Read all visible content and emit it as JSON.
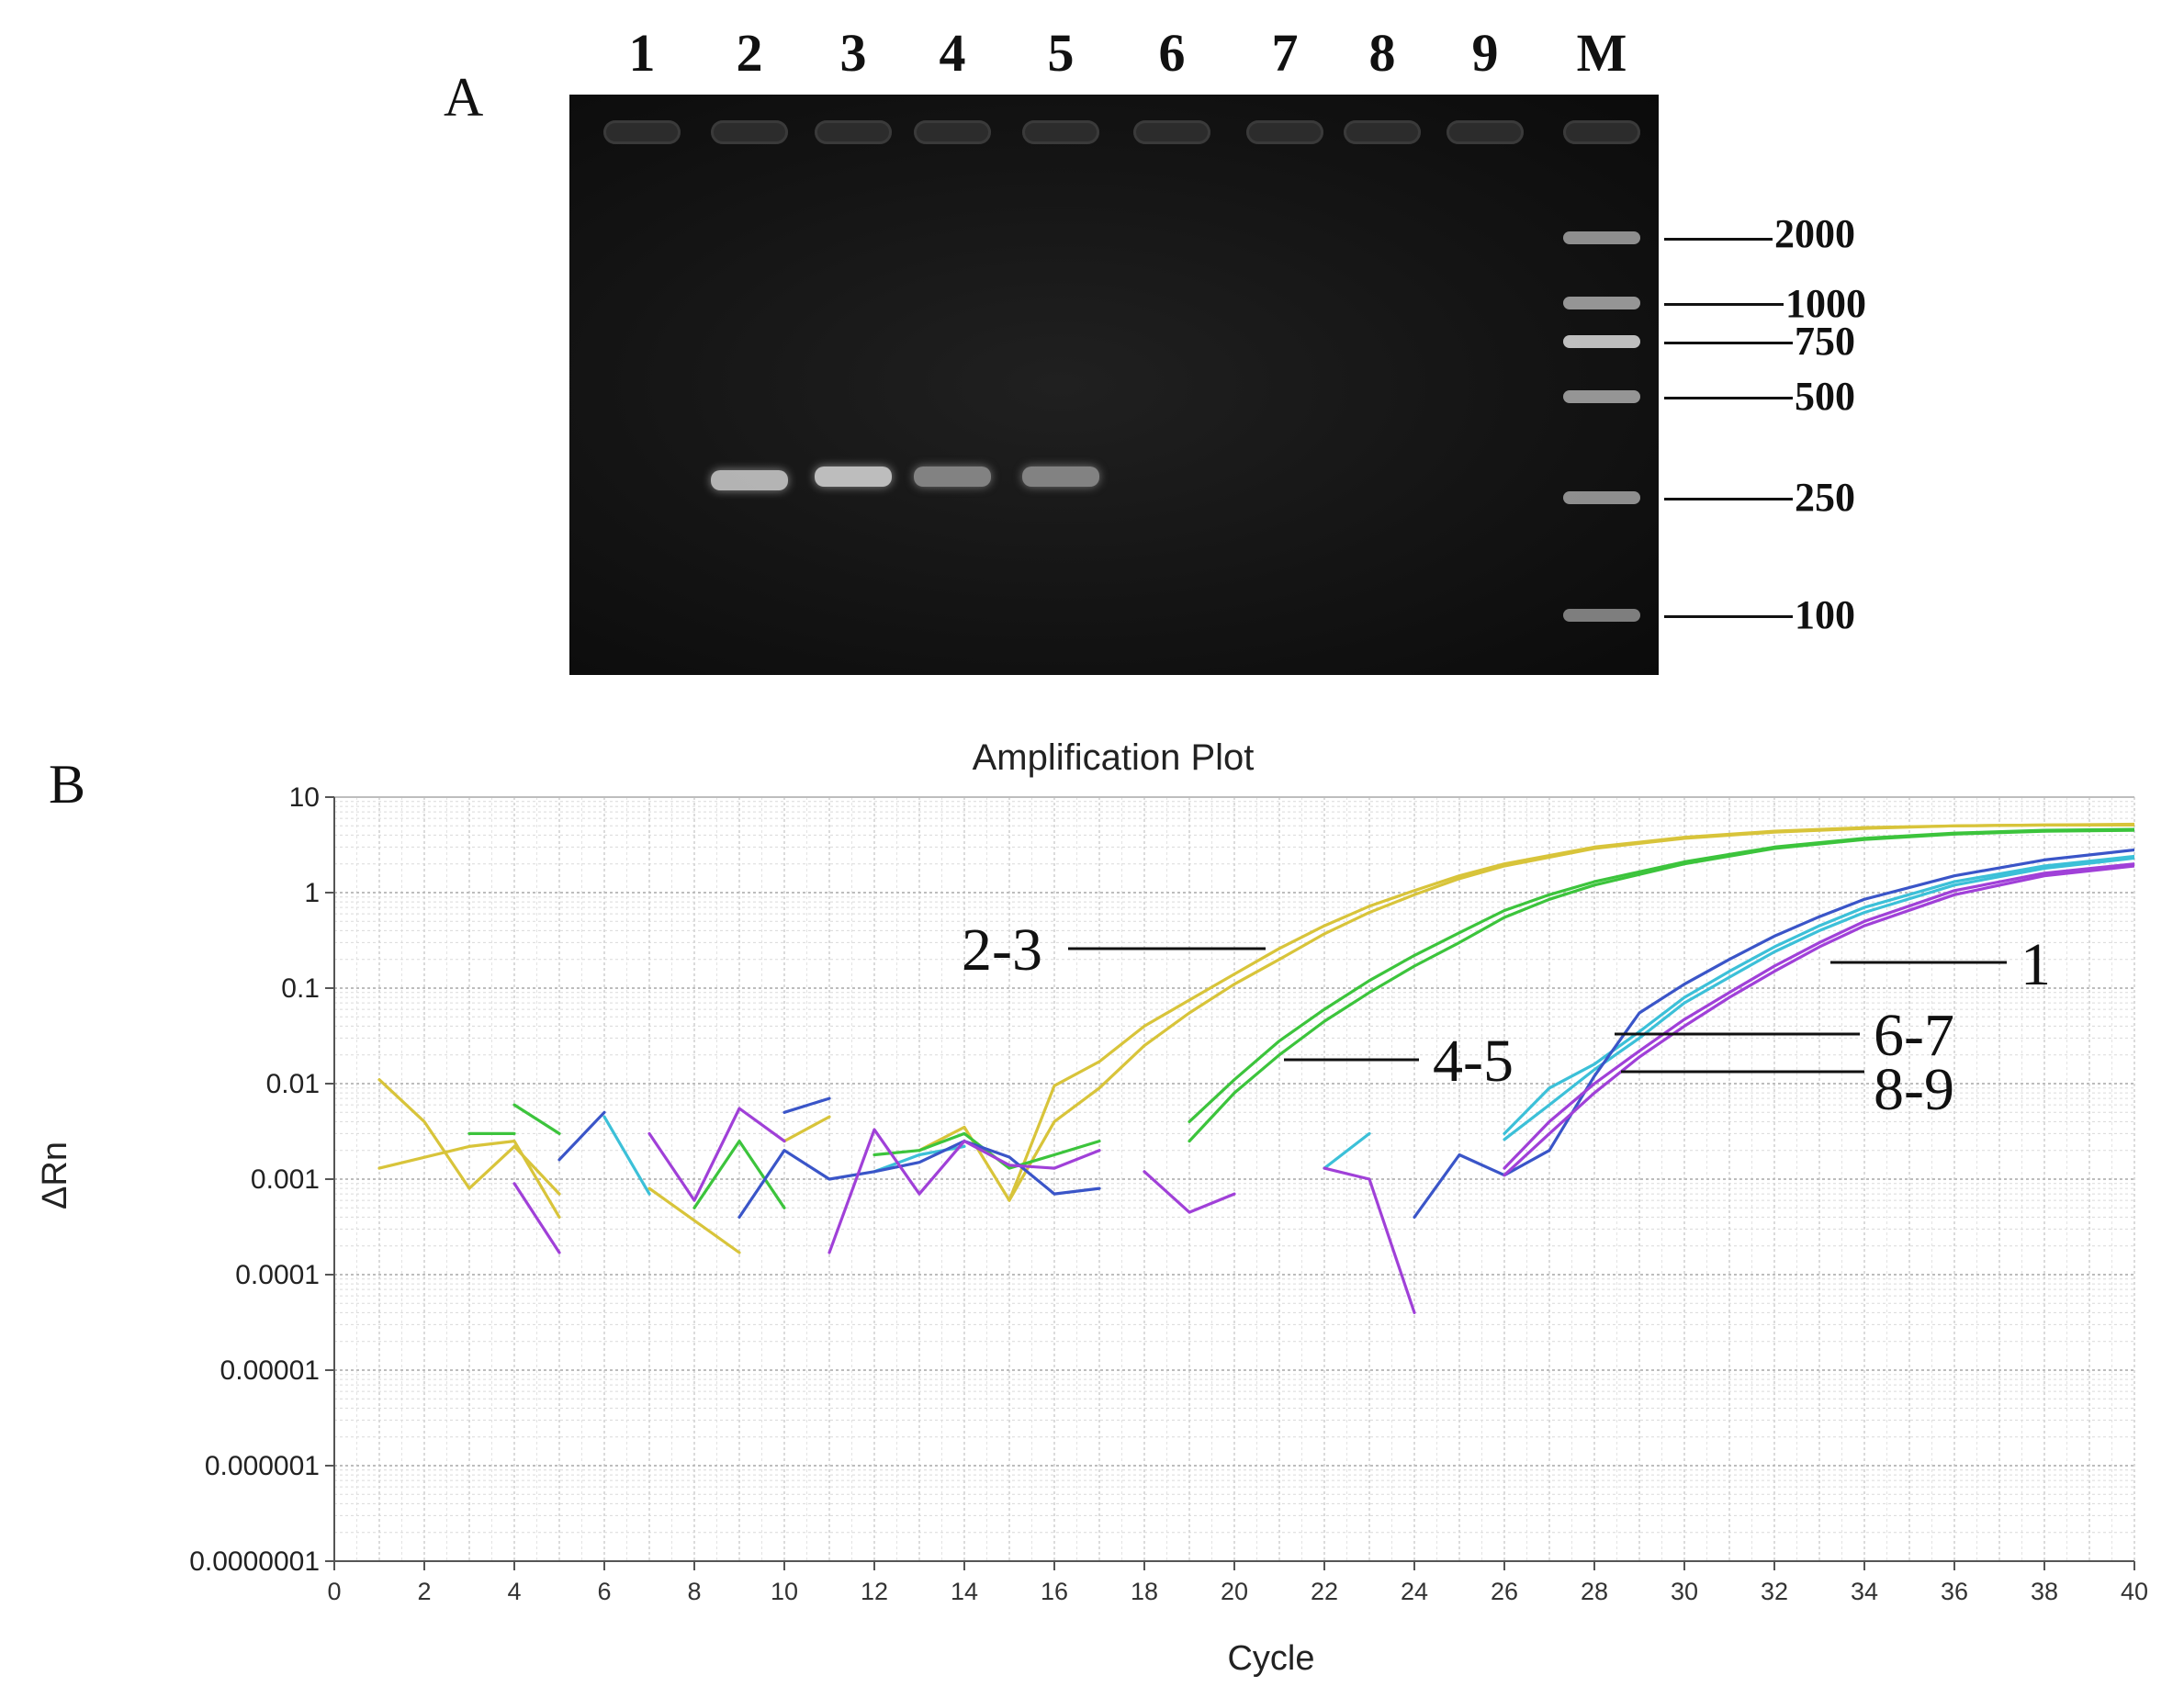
{
  "panel_a": {
    "letter": "A",
    "lane_labels": [
      "1",
      "2",
      "3",
      "4",
      "5",
      "6",
      "7",
      "8",
      "9",
      "M"
    ],
    "marker_sizes": [
      "2000",
      "1000",
      "750",
      "500",
      "250",
      "100"
    ],
    "band_intensity": [
      0,
      0.85,
      0.9,
      0.55,
      0.55,
      0,
      0,
      0,
      0
    ]
  },
  "panel_b": {
    "letter": "B",
    "annotations": [
      "2-3",
      "4-5",
      "1",
      "6-7",
      "8-9"
    ]
  },
  "colors": {
    "yellow": "#d8c43a",
    "green": "#3cc43c",
    "blue": "#3a55c8",
    "cyan": "#3cc0d8",
    "purple": "#a040d8"
  },
  "chart_data": {
    "type": "line",
    "title": "Amplification Plot",
    "xlabel": "Cycle",
    "ylabel": "ΔRn",
    "y_scale": "log",
    "xlim": [
      0,
      40
    ],
    "ylim": [
      1e-07,
      10
    ],
    "x_ticks": [
      "0",
      "2",
      "4",
      "6",
      "8",
      "10",
      "12",
      "14",
      "16",
      "18",
      "20",
      "22",
      "24",
      "26",
      "28",
      "30",
      "32",
      "34",
      "36",
      "38",
      "40"
    ],
    "y_ticks": [
      "10",
      "1",
      "0.1",
      "0.01",
      "0.001",
      "0.0001",
      "0.00001",
      "0.000001",
      "0.0000001"
    ],
    "series": [
      {
        "name": "2",
        "color": "yellow",
        "points": [
          [
            1,
            0.0013
          ],
          [
            3,
            0.0022
          ],
          [
            4,
            0.0025
          ],
          [
            5,
            0.0004
          ],
          [
            null,
            null
          ],
          [
            15,
            0.0006
          ],
          [
            16,
            0.004
          ],
          [
            17,
            0.009
          ],
          [
            18,
            0.025
          ],
          [
            19,
            0.055
          ],
          [
            20,
            0.11
          ],
          [
            21,
            0.2
          ],
          [
            22,
            0.37
          ],
          [
            23,
            0.62
          ],
          [
            24,
            0.95
          ],
          [
            25,
            1.4
          ],
          [
            26,
            1.9
          ],
          [
            28,
            2.9
          ],
          [
            30,
            3.7
          ],
          [
            32,
            4.3
          ],
          [
            34,
            4.7
          ],
          [
            36,
            5.0
          ],
          [
            38,
            5.1
          ],
          [
            40,
            5.2
          ]
        ]
      },
      {
        "name": "3",
        "color": "yellow",
        "points": [
          [
            1,
            0.011
          ],
          [
            2,
            0.004
          ],
          [
            3,
            0.0008
          ],
          [
            4,
            0.0022
          ],
          [
            5,
            0.0007
          ],
          [
            null,
            null
          ],
          [
            6,
            0.0045
          ],
          [
            null,
            null
          ],
          [
            7,
            0.0008
          ],
          [
            9,
            0.00017
          ],
          [
            null,
            null
          ],
          [
            10,
            0.0025
          ],
          [
            11,
            0.0045
          ],
          [
            null,
            null
          ],
          [
            13,
            0.002
          ],
          [
            14,
            0.0035
          ],
          [
            15,
            0.0006
          ],
          [
            16,
            0.0095
          ],
          [
            17,
            0.017
          ],
          [
            18,
            0.04
          ],
          [
            19,
            0.075
          ],
          [
            20,
            0.14
          ],
          [
            21,
            0.26
          ],
          [
            22,
            0.45
          ],
          [
            23,
            0.72
          ],
          [
            24,
            1.05
          ],
          [
            25,
            1.5
          ],
          [
            26,
            2.0
          ],
          [
            28,
            3.0
          ],
          [
            30,
            3.8
          ],
          [
            32,
            4.4
          ],
          [
            34,
            4.8
          ],
          [
            36,
            5.0
          ],
          [
            38,
            5.1
          ],
          [
            40,
            5.1
          ]
        ]
      },
      {
        "name": "4",
        "color": "green",
        "points": [
          [
            3,
            0.003
          ],
          [
            4,
            0.003
          ],
          [
            null,
            null
          ],
          [
            4,
            0.006
          ],
          [
            5,
            0.003
          ],
          [
            null,
            null
          ],
          [
            8,
            0.0005
          ],
          [
            9,
            0.0025
          ],
          [
            10,
            0.0005
          ],
          [
            null,
            null
          ],
          [
            12,
            0.0018
          ],
          [
            13,
            0.002
          ],
          [
            14,
            0.003
          ],
          [
            15,
            0.0013
          ],
          [
            16,
            0.0018
          ],
          [
            17,
            0.0025
          ],
          [
            null,
            null
          ],
          [
            19,
            0.0025
          ],
          [
            20,
            0.008
          ],
          [
            21,
            0.02
          ],
          [
            22,
            0.045
          ],
          [
            23,
            0.09
          ],
          [
            24,
            0.17
          ],
          [
            25,
            0.3
          ],
          [
            26,
            0.55
          ],
          [
            27,
            0.85
          ],
          [
            28,
            1.2
          ],
          [
            30,
            2.0
          ],
          [
            32,
            2.9
          ],
          [
            34,
            3.6
          ],
          [
            36,
            4.1
          ],
          [
            38,
            4.4
          ],
          [
            40,
            4.5
          ]
        ]
      },
      {
        "name": "5",
        "color": "green",
        "points": [
          [
            19,
            0.004
          ],
          [
            20,
            0.011
          ],
          [
            21,
            0.028
          ],
          [
            22,
            0.06
          ],
          [
            23,
            0.12
          ],
          [
            24,
            0.22
          ],
          [
            25,
            0.38
          ],
          [
            26,
            0.65
          ],
          [
            27,
            0.95
          ],
          [
            28,
            1.3
          ],
          [
            30,
            2.1
          ],
          [
            32,
            3.0
          ],
          [
            34,
            3.7
          ],
          [
            36,
            4.2
          ],
          [
            38,
            4.5
          ],
          [
            40,
            4.6
          ]
        ]
      },
      {
        "name": "6",
        "color": "cyan",
        "points": [
          [
            6,
            0.0045
          ],
          [
            7,
            0.0007
          ],
          [
            null,
            null
          ],
          [
            12,
            0.0012
          ],
          [
            13,
            0.0018
          ],
          [
            14,
            0.0022
          ],
          [
            null,
            null
          ],
          [
            22,
            0.0013
          ],
          [
            23,
            0.003
          ],
          [
            null,
            null
          ],
          [
            26,
            0.003
          ],
          [
            27,
            0.009
          ],
          [
            28,
            0.016
          ],
          [
            29,
            0.035
          ],
          [
            30,
            0.08
          ],
          [
            31,
            0.15
          ],
          [
            32,
            0.27
          ],
          [
            33,
            0.45
          ],
          [
            34,
            0.7
          ],
          [
            36,
            1.3
          ],
          [
            38,
            1.9
          ],
          [
            40,
            2.4
          ]
        ]
      },
      {
        "name": "7",
        "color": "cyan",
        "points": [
          [
            26,
            0.0026
          ],
          [
            27,
            0.006
          ],
          [
            28,
            0.014
          ],
          [
            29,
            0.03
          ],
          [
            30,
            0.07
          ],
          [
            31,
            0.13
          ],
          [
            32,
            0.24
          ],
          [
            33,
            0.4
          ],
          [
            34,
            0.62
          ],
          [
            36,
            1.2
          ],
          [
            38,
            1.8
          ],
          [
            40,
            2.3
          ]
        ]
      },
      {
        "name": "1",
        "color": "blue",
        "points": [
          [
            5,
            0.0016
          ],
          [
            6,
            0.005
          ],
          [
            null,
            null
          ],
          [
            9,
            0.0004
          ],
          [
            10,
            0.002
          ],
          [
            11,
            0.001
          ],
          [
            12,
            0.0012
          ],
          [
            13,
            0.0015
          ],
          [
            14,
            0.0025
          ],
          [
            15,
            0.0017
          ],
          [
            16,
            0.0007
          ],
          [
            17,
            0.0008
          ],
          [
            null,
            null
          ],
          [
            10,
            0.005
          ],
          [
            11,
            0.007
          ],
          [
            null,
            null
          ],
          [
            24,
            0.0004
          ],
          [
            25,
            0.0018
          ],
          [
            26,
            0.0011
          ],
          [
            27,
            0.002
          ],
          [
            28,
            0.012
          ],
          [
            29,
            0.055
          ],
          [
            30,
            0.11
          ],
          [
            31,
            0.2
          ],
          [
            32,
            0.35
          ],
          [
            33,
            0.56
          ],
          [
            34,
            0.85
          ],
          [
            36,
            1.5
          ],
          [
            38,
            2.2
          ],
          [
            40,
            2.8
          ]
        ]
      },
      {
        "name": "8",
        "color": "purple",
        "points": [
          [
            4,
            0.0009
          ],
          [
            5,
            0.00017
          ],
          [
            null,
            null
          ],
          [
            7,
            0.003
          ],
          [
            8,
            0.0006
          ],
          [
            9,
            0.0055
          ],
          [
            10,
            0.0025
          ],
          [
            null,
            null
          ],
          [
            11,
            0.00017
          ],
          [
            12,
            0.0033
          ],
          [
            13,
            0.0007
          ],
          [
            14,
            0.0025
          ],
          [
            15,
            0.0014
          ],
          [
            16,
            0.0013
          ],
          [
            17,
            0.002
          ],
          [
            null,
            null
          ],
          [
            18,
            0.0012
          ],
          [
            19,
            0.00045
          ],
          [
            20,
            0.0007
          ],
          [
            null,
            null
          ],
          [
            22,
            0.0013
          ],
          [
            23,
            0.001
          ],
          [
            24,
            4e-05
          ],
          [
            null,
            null
          ],
          [
            26,
            0.0011
          ],
          [
            27,
            0.003
          ],
          [
            28,
            0.008
          ],
          [
            29,
            0.019
          ],
          [
            30,
            0.04
          ],
          [
            31,
            0.08
          ],
          [
            32,
            0.15
          ],
          [
            33,
            0.27
          ],
          [
            34,
            0.45
          ],
          [
            36,
            0.95
          ],
          [
            38,
            1.5
          ],
          [
            40,
            1.9
          ]
        ]
      },
      {
        "name": "9",
        "color": "purple",
        "points": [
          [
            26,
            0.0013
          ],
          [
            27,
            0.004
          ],
          [
            28,
            0.01
          ],
          [
            29,
            0.022
          ],
          [
            30,
            0.047
          ],
          [
            31,
            0.09
          ],
          [
            32,
            0.17
          ],
          [
            33,
            0.3
          ],
          [
            34,
            0.5
          ],
          [
            36,
            1.05
          ],
          [
            38,
            1.6
          ],
          [
            40,
            2.0
          ]
        ]
      }
    ]
  }
}
